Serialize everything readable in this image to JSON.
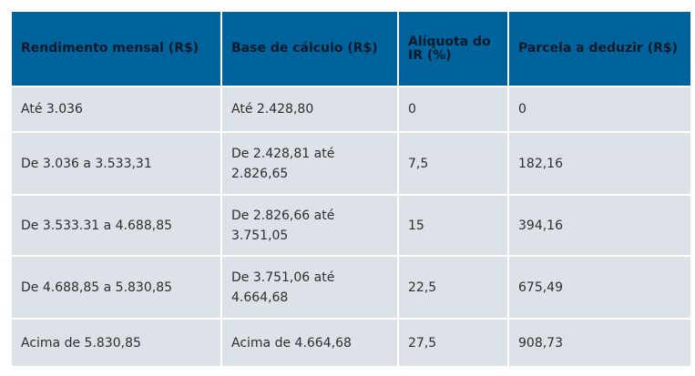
{
  "table": {
    "headers": [
      "Rendimento mensal (R$)",
      "Base de cálculo (R$)",
      "Alíquota do IR (%)",
      "Parcela a deduzir (R$)"
    ],
    "rows": [
      [
        "Até 3.036",
        "Até 2.428,80",
        "0",
        "0"
      ],
      [
        "De 3.036 a 3.533,31",
        "De 2.428,81 até 2.826,65",
        "7,5",
        "182,16"
      ],
      [
        "De 3.533.31 a 4.688,85",
        "De 2.826,66 até 3.751,05",
        "15",
        "394,16"
      ],
      [
        "De 4.688,85 a 5.830,85",
        "De 3.751,06 até 4.664,68",
        "22,5",
        "675,49"
      ],
      [
        "Acima de 5.830,85",
        "Acima de 4.664,68",
        "27,5",
        "908,73"
      ]
    ]
  }
}
